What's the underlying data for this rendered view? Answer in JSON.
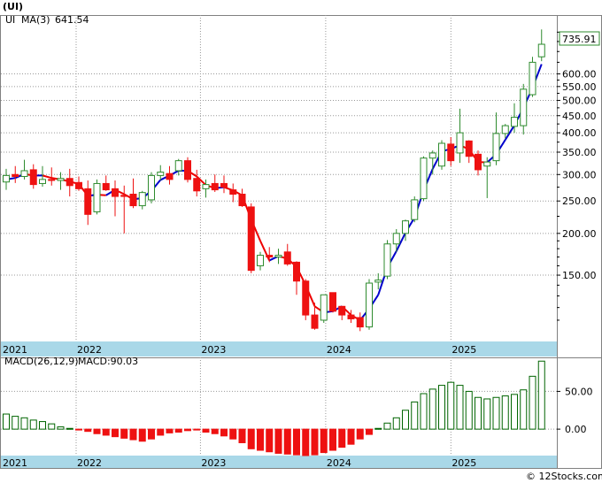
{
  "ticker_label": "(UI)",
  "legend": {
    "symbol": "UI",
    "ma_label": "MA(3)",
    "ma_value": "641.54"
  },
  "last_price_tag": "735.91",
  "watermark": "© 12Stocks.com",
  "colors": {
    "up": "#2e8b2e",
    "down": "#ee1111",
    "up_fill": "#ffffff",
    "ma_up": "#0000cc",
    "ma_down": "#ee0000",
    "axis_band": "#a9d8e8",
    "grid": "#999999",
    "macd_bar": "#006400"
  },
  "chart_data": [
    {
      "type": "candlestick",
      "scale": "log",
      "ylim": [
        95,
        900
      ],
      "yticks": [
        "150.00",
        "200.00",
        "250.00",
        "300.00",
        "350.00",
        "400.00",
        "450.00",
        "500.00",
        "550.00",
        "600.00"
      ],
      "year_labels": [
        "2021",
        "2022",
        "2023",
        "2024",
        "2025"
      ],
      "candles": [
        {
          "o": 285,
          "h": 312,
          "l": 270,
          "c": 298
        },
        {
          "o": 300,
          "h": 318,
          "l": 283,
          "c": 296
        },
        {
          "o": 296,
          "h": 332,
          "l": 290,
          "c": 308
        },
        {
          "o": 310,
          "h": 322,
          "l": 272,
          "c": 280
        },
        {
          "o": 282,
          "h": 318,
          "l": 276,
          "c": 290
        },
        {
          "o": 290,
          "h": 315,
          "l": 278,
          "c": 288
        },
        {
          "o": 288,
          "h": 305,
          "l": 270,
          "c": 292
        },
        {
          "o": 292,
          "h": 312,
          "l": 258,
          "c": 278
        },
        {
          "o": 284,
          "h": 296,
          "l": 268,
          "c": 272
        },
        {
          "o": 272,
          "h": 288,
          "l": 212,
          "c": 228
        },
        {
          "o": 232,
          "h": 290,
          "l": 228,
          "c": 282
        },
        {
          "o": 282,
          "h": 298,
          "l": 268,
          "c": 270
        },
        {
          "o": 272,
          "h": 288,
          "l": 225,
          "c": 258
        },
        {
          "o": 260,
          "h": 278,
          "l": 200,
          "c": 258
        },
        {
          "o": 262,
          "h": 292,
          "l": 238,
          "c": 242
        },
        {
          "o": 242,
          "h": 268,
          "l": 236,
          "c": 265
        },
        {
          "o": 252,
          "h": 305,
          "l": 246,
          "c": 298
        },
        {
          "o": 298,
          "h": 320,
          "l": 288,
          "c": 305
        },
        {
          "o": 302,
          "h": 318,
          "l": 280,
          "c": 290
        },
        {
          "o": 308,
          "h": 334,
          "l": 298,
          "c": 330
        },
        {
          "o": 330,
          "h": 338,
          "l": 284,
          "c": 290
        },
        {
          "o": 292,
          "h": 310,
          "l": 258,
          "c": 268
        },
        {
          "o": 272,
          "h": 290,
          "l": 256,
          "c": 280
        },
        {
          "o": 282,
          "h": 300,
          "l": 266,
          "c": 270
        },
        {
          "o": 282,
          "h": 298,
          "l": 264,
          "c": 275
        },
        {
          "o": 270,
          "h": 282,
          "l": 248,
          "c": 262
        },
        {
          "o": 262,
          "h": 272,
          "l": 240,
          "c": 242
        },
        {
          "o": 240,
          "h": 246,
          "l": 152,
          "c": 155
        },
        {
          "o": 160,
          "h": 176,
          "l": 155,
          "c": 172
        },
        {
          "o": 172,
          "h": 182,
          "l": 164,
          "c": 170
        },
        {
          "o": 170,
          "h": 180,
          "l": 162,
          "c": 172
        },
        {
          "o": 176,
          "h": 186,
          "l": 160,
          "c": 162
        },
        {
          "o": 164,
          "h": 165,
          "l": 131,
          "c": 144
        },
        {
          "o": 144,
          "h": 146,
          "l": 110,
          "c": 114
        },
        {
          "o": 114,
          "h": 124,
          "l": 103,
          "c": 104
        },
        {
          "o": 110,
          "h": 131,
          "l": 108,
          "c": 131
        },
        {
          "o": 133,
          "h": 133,
          "l": 116,
          "c": 117
        },
        {
          "o": 121,
          "h": 121,
          "l": 110,
          "c": 114
        },
        {
          "o": 114,
          "h": 118,
          "l": 108,
          "c": 111
        },
        {
          "o": 112,
          "h": 116,
          "l": 102,
          "c": 105
        },
        {
          "o": 105,
          "h": 146,
          "l": 103,
          "c": 142
        },
        {
          "o": 143,
          "h": 152,
          "l": 136,
          "c": 145
        },
        {
          "o": 149,
          "h": 191,
          "l": 146,
          "c": 186
        },
        {
          "o": 186,
          "h": 206,
          "l": 176,
          "c": 200
        },
        {
          "o": 200,
          "h": 220,
          "l": 190,
          "c": 218
        },
        {
          "o": 220,
          "h": 258,
          "l": 216,
          "c": 252
        },
        {
          "o": 254,
          "h": 340,
          "l": 250,
          "c": 336
        },
        {
          "o": 336,
          "h": 354,
          "l": 300,
          "c": 348
        },
        {
          "o": 318,
          "h": 380,
          "l": 310,
          "c": 372
        },
        {
          "o": 370,
          "h": 388,
          "l": 318,
          "c": 330
        },
        {
          "o": 348,
          "h": 472,
          "l": 325,
          "c": 400
        },
        {
          "o": 378,
          "h": 380,
          "l": 325,
          "c": 340
        },
        {
          "o": 345,
          "h": 354,
          "l": 298,
          "c": 310
        },
        {
          "o": 318,
          "h": 338,
          "l": 255,
          "c": 327
        },
        {
          "o": 330,
          "h": 460,
          "l": 320,
          "c": 398
        },
        {
          "o": 398,
          "h": 425,
          "l": 385,
          "c": 420
        },
        {
          "o": 418,
          "h": 490,
          "l": 400,
          "c": 445
        },
        {
          "o": 420,
          "h": 560,
          "l": 395,
          "c": 540
        },
        {
          "o": 520,
          "h": 675,
          "l": 512,
          "c": 650
        },
        {
          "o": 675,
          "h": 815,
          "l": 655,
          "c": 735.91
        }
      ],
      "ma3": [
        290,
        293,
        301,
        298,
        298,
        293,
        290,
        286,
        281,
        259,
        261,
        260,
        270,
        262,
        253,
        255,
        268,
        289,
        298,
        308,
        308,
        296,
        279,
        273,
        275,
        269,
        260,
        220,
        190,
        166,
        171,
        168,
        159,
        140,
        121,
        116,
        117,
        121,
        114,
        110,
        119,
        131,
        158,
        177,
        201,
        223,
        269,
        312,
        352,
        358,
        367,
        357,
        327,
        326,
        345,
        381,
        421,
        475,
        545,
        641.54
      ]
    },
    {
      "type": "bar",
      "title": "MACD(26,12,9)",
      "value_label": "MACD:90.03",
      "yticks": [
        "50.00",
        "0.00"
      ],
      "ylim": [
        -35,
        95
      ],
      "year_labels": [
        "2021",
        "2022",
        "2023",
        "2024",
        "2025"
      ],
      "values": [
        20,
        17,
        15,
        12,
        10,
        7,
        3,
        1,
        -1,
        -3,
        -6,
        -8,
        -10,
        -12,
        -14,
        -16,
        -13,
        -8,
        -5,
        -4,
        -2,
        -1,
        -4,
        -6,
        -9,
        -13,
        -18,
        -26,
        -28,
        -30,
        -32,
        -33,
        -34,
        -35,
        -34,
        -31,
        -28,
        -24,
        -20,
        -13,
        -7,
        1,
        8,
        15,
        25,
        36,
        47,
        53,
        58,
        62,
        58,
        50,
        42,
        40,
        42,
        44,
        46,
        52,
        70,
        90.03
      ]
    }
  ]
}
